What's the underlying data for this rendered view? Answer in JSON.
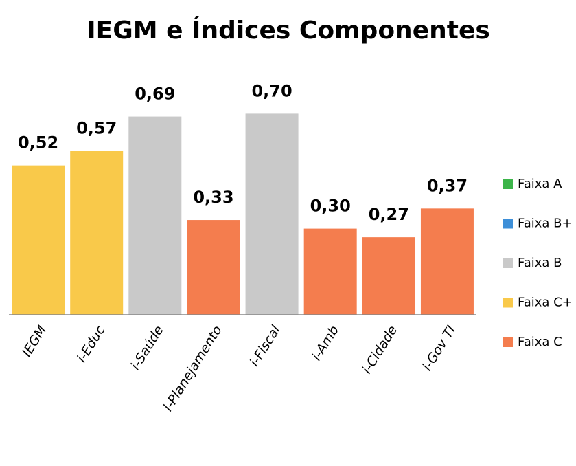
{
  "chart_data": {
    "type": "bar",
    "title": "IEGM e Índices Componentes",
    "categories": [
      "IEGM",
      "i-Educ",
      "i-Saúde",
      "i-Planejamento",
      "i-Fiscal",
      "i-Amb",
      "i-Cidade",
      "i-Gov TI"
    ],
    "values": [
      0.52,
      0.57,
      0.69,
      0.33,
      0.7,
      0.3,
      0.27,
      0.37
    ],
    "value_labels": [
      "0,52",
      "0,57",
      "0,69",
      "0,33",
      "0,70",
      "0,30",
      "0,27",
      "0,37"
    ],
    "colors": [
      "#f9c94a",
      "#f9c94a",
      "#c9c9c9",
      "#f47d4e",
      "#c9c9c9",
      "#f47d4e",
      "#f47d4e",
      "#f47d4e"
    ],
    "ylim": [
      0,
      1
    ],
    "legend": [
      {
        "name": "Faixa A",
        "color": "#3cb54a"
      },
      {
        "name": "Faixa B+",
        "color": "#3d8fd8"
      },
      {
        "name": "Faixa B",
        "color": "#c9c9c9"
      },
      {
        "name": "Faixa C+",
        "color": "#f9c94a"
      },
      {
        "name": "Faixa C",
        "color": "#f47d4e"
      }
    ]
  }
}
